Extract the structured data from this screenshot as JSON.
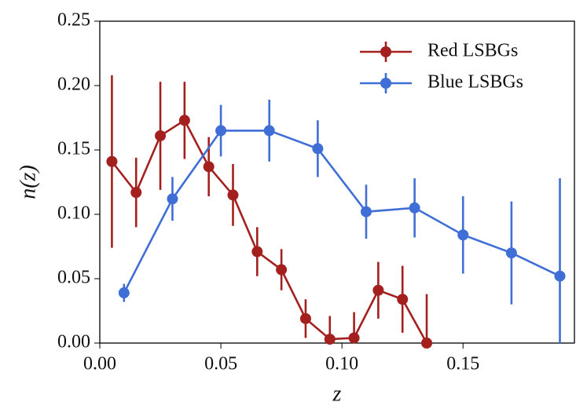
{
  "chart_data": {
    "type": "errorbar-line",
    "x_label": "z",
    "y_label": "n(z)",
    "xlim": [
      0,
      0.196
    ],
    "ylim": [
      0,
      0.25
    ],
    "xticks": [
      {
        "value": 0,
        "label": "0.00"
      },
      {
        "value": 0.05,
        "label": "0.05"
      },
      {
        "value": 0.1,
        "label": "0.10"
      },
      {
        "value": 0.15,
        "label": "0.15"
      }
    ],
    "yticks": [
      {
        "value": 0,
        "label": "0.00"
      },
      {
        "value": 0.05,
        "label": "0.05"
      },
      {
        "value": 0.1,
        "label": "0.10"
      },
      {
        "value": 0.15,
        "label": "0.15"
      },
      {
        "value": 0.2,
        "label": "0.20"
      },
      {
        "value": 0.25,
        "label": "0.25"
      }
    ],
    "legend": "upper right",
    "series": [
      {
        "name": "Red LSBGs",
        "color": "#a3201f",
        "x": [
          0.005,
          0.015,
          0.025,
          0.035,
          0.045,
          0.055,
          0.065,
          0.075,
          0.085,
          0.095,
          0.105,
          0.115,
          0.125,
          0.135
        ],
        "values": [
          0.141,
          0.117,
          0.161,
          0.173,
          0.137,
          0.115,
          0.071,
          0.057,
          0.019,
          0.003,
          0.004,
          0.041,
          0.034,
          0.0
        ],
        "errors": [
          0.067,
          0.027,
          0.042,
          0.03,
          0.023,
          0.024,
          0.019,
          0.016,
          0.015,
          0.018,
          0.02,
          0.022,
          0.026,
          0.038
        ]
      },
      {
        "name": "Blue LSBGs",
        "color": "#3f6ed6",
        "x": [
          0.01,
          0.03,
          0.05,
          0.07,
          0.09,
          0.11,
          0.13,
          0.15,
          0.17,
          0.19
        ],
        "values": [
          0.039,
          0.112,
          0.165,
          0.165,
          0.151,
          0.102,
          0.105,
          0.084,
          0.07,
          0.052
        ],
        "errors": [
          0.007,
          0.017,
          0.02,
          0.024,
          0.022,
          0.021,
          0.023,
          0.03,
          0.04,
          0.076
        ]
      }
    ]
  }
}
